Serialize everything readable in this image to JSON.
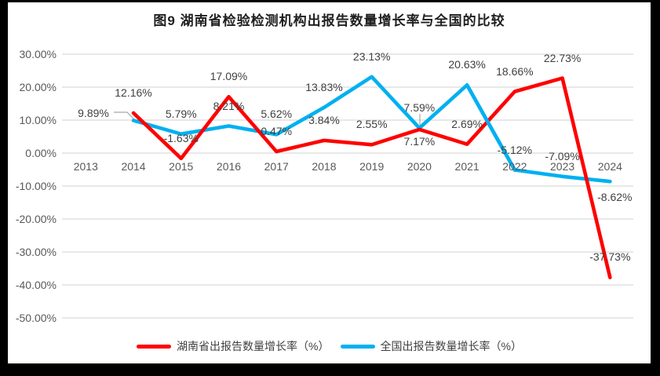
{
  "title": "图9 湖南省检验检测机构出报告数量增长率与全国的比较",
  "frame": {
    "border_color": "#000000",
    "panel_color": "#FFFFFF"
  },
  "colors": {
    "gridline": "#D9D9D9",
    "axis_text": "#595959",
    "data_label_text": "#404040",
    "leader_line": "#A6A6A6",
    "hunan_red": "#FF0000",
    "national_blue": "#00B0F0"
  },
  "chart_data": {
    "type": "line",
    "title": "图9 湖南省检验检测机构出报告数量增长率与全国的比较",
    "categories": [
      "2013",
      "2014",
      "2015",
      "2016",
      "2017",
      "2018",
      "2019",
      "2020",
      "2021",
      "2022",
      "2023",
      "2024"
    ],
    "grid": true,
    "legend_position": "bottom",
    "y_axis": {
      "min": -50,
      "max": 30,
      "step": 10,
      "ticks": [
        {
          "value": 30,
          "label": "30.00%"
        },
        {
          "value": 20,
          "label": "20.00%"
        },
        {
          "value": 10,
          "label": "10.00%"
        },
        {
          "value": 0,
          "label": "0.00%"
        },
        {
          "value": -10,
          "label": "-10.00%"
        },
        {
          "value": -20,
          "label": "-20.00%"
        },
        {
          "value": -30,
          "label": "-30.00%"
        },
        {
          "value": -40,
          "label": "-40.00%"
        },
        {
          "value": -50,
          "label": "-50.00%"
        }
      ]
    },
    "series": [
      {
        "name": "湖南省出报告数量增长率（%）",
        "color": "#FF0000",
        "values": [
          null,
          12.16,
          -1.63,
          17.09,
          0.47,
          3.84,
          2.55,
          7.17,
          2.69,
          18.66,
          22.73,
          -37.73
        ],
        "labels": [
          null,
          "12.16%",
          "-1.63%",
          "17.09%",
          "0.47%",
          "3.84%",
          "2.55%",
          "7.17%",
          "2.69%",
          "18.66%",
          "22.73%",
          "-37.73%"
        ]
      },
      {
        "name": "全国出报告数量增长率（%）",
        "color": "#00B0F0",
        "values": [
          null,
          9.89,
          5.79,
          8.21,
          5.62,
          13.83,
          23.13,
          7.59,
          20.63,
          -5.12,
          -7.09,
          -8.62
        ],
        "labels": [
          null,
          "9.89%",
          "5.79%",
          "8.21%",
          "5.62%",
          "13.83%",
          "23.13%",
          "7.59%",
          "20.63%",
          "-5.12%",
          "-7.09%",
          "-8.62%"
        ]
      }
    ]
  }
}
